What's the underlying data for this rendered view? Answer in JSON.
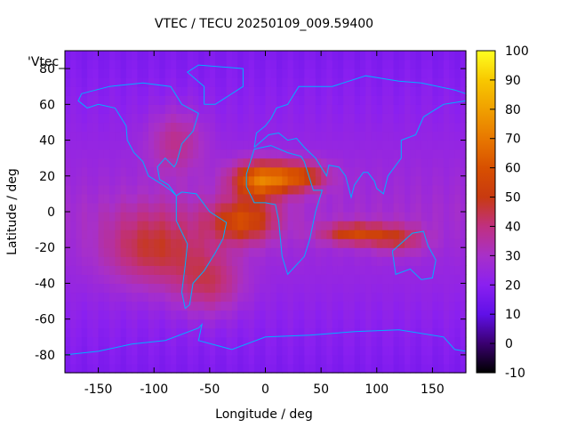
{
  "chart_data": {
    "type": "heatmap",
    "title": "VTEC / TECU 20250109_009.59400",
    "xlabel": "Longitude / deg",
    "ylabel": "Latitude / deg",
    "series_key": "'Vtec_",
    "xlim": [
      -180,
      180
    ],
    "ylim": [
      -90,
      90
    ],
    "xticks": [
      -150,
      -100,
      -50,
      0,
      50,
      100,
      150
    ],
    "yticks": [
      -80,
      -60,
      -40,
      -20,
      0,
      20,
      40,
      60,
      80
    ],
    "colorbar": {
      "range": [
        -10,
        100
      ],
      "ticks": [
        -10,
        0,
        10,
        20,
        30,
        40,
        50,
        60,
        70,
        80,
        90,
        100
      ],
      "palette": [
        {
          "v": -10,
          "color": "#000000"
        },
        {
          "v": 0,
          "color": "#3a0070"
        },
        {
          "v": 10,
          "color": "#6010e8"
        },
        {
          "v": 20,
          "color": "#8a20f0"
        },
        {
          "v": 30,
          "color": "#a830c8"
        },
        {
          "v": 40,
          "color": "#c03080"
        },
        {
          "v": 50,
          "color": "#c83a10"
        },
        {
          "v": 60,
          "color": "#d85000"
        },
        {
          "v": 70,
          "color": "#e87800"
        },
        {
          "v": 80,
          "color": "#f0a000"
        },
        {
          "v": 90,
          "color": "#f8c800"
        },
        {
          "v": 100,
          "color": "#ffff20"
        }
      ]
    },
    "field_sources": [
      {
        "lon": -5,
        "lat": 18,
        "peak": 42,
        "slon": 25,
        "slat": 10
      },
      {
        "lon": 30,
        "lat": 20,
        "peak": 30,
        "slon": 25,
        "slat": 8
      },
      {
        "lon": -20,
        "lat": -5,
        "peak": 30,
        "slon": 30,
        "slat": 12
      },
      {
        "lon": 80,
        "lat": -12,
        "peak": 28,
        "slon": 30,
        "slat": 6
      },
      {
        "lon": 120,
        "lat": -15,
        "peak": 18,
        "slon": 25,
        "slat": 8
      },
      {
        "lon": -100,
        "lat": -20,
        "peak": 22,
        "slon": 45,
        "slat": 22
      },
      {
        "lon": -80,
        "lat": 40,
        "peak": 15,
        "slon": 25,
        "slat": 18
      },
      {
        "lon": -50,
        "lat": -40,
        "peak": 18,
        "slon": 30,
        "slat": 18
      }
    ],
    "field_base": 28
  }
}
